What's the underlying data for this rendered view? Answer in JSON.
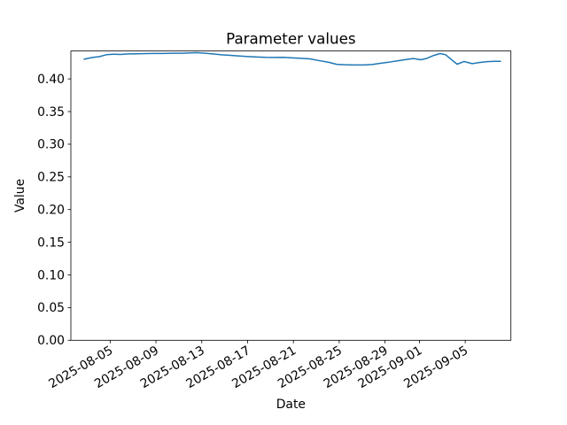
{
  "figure": {
    "title": "Parameter values",
    "xlabel": "Date",
    "ylabel": "Value",
    "background_color": "#ffffff",
    "spine_color": "#000000",
    "text_color": "#000000",
    "line_color": "#1f77b4"
  },
  "chart_data": {
    "type": "line",
    "title": "Parameter values",
    "xlabel": "Date",
    "ylabel": "Value",
    "grid": false,
    "legend": null,
    "ylim": [
      0,
      0.4427
    ],
    "x_epoch": "days since 2025-08-01",
    "xlim_days": [
      0.57,
      38.99
    ],
    "yticks": [
      0.0,
      0.05,
      0.1,
      0.15,
      0.2,
      0.25,
      0.3,
      0.35,
      0.4
    ],
    "ytick_labels": [
      "0.00",
      "0.05",
      "0.10",
      "0.15",
      "0.20",
      "0.25",
      "0.30",
      "0.35",
      "0.40"
    ],
    "xticks_days": [
      4,
      8,
      12,
      16,
      20,
      24,
      28,
      31,
      35
    ],
    "xtick_labels": [
      "2025-08-05",
      "2025-08-09",
      "2025-08-13",
      "2025-08-17",
      "2025-08-21",
      "2025-08-25",
      "2025-08-29",
      "2025-09-01",
      "2025-09-05"
    ],
    "xtick_rotation_deg": 30,
    "series": [
      {
        "name": "Parameter values",
        "color": "#1f77b4",
        "x_days": [
          1.73,
          2.12,
          2.51,
          3.05,
          3.67,
          4.29,
          4.9,
          5.6,
          6.37,
          7.15,
          7.92,
          8.69,
          9.47,
          10.24,
          11.01,
          11.56,
          12.17,
          12.95,
          13.72,
          14.49,
          15.27,
          16.04,
          16.81,
          17.59,
          18.36,
          19.13,
          19.91,
          20.68,
          21.45,
          22.23,
          23.0,
          23.77,
          24.55,
          25.32,
          26.09,
          26.87,
          27.64,
          28.41,
          29.19,
          29.96,
          30.5,
          31.12,
          31.66,
          32.28,
          32.82,
          33.29,
          33.83,
          34.29,
          34.91,
          35.61,
          36.23,
          36.92,
          37.54,
          38.08
        ],
        "values": [
          0.4301,
          0.4317,
          0.433,
          0.434,
          0.437,
          0.4378,
          0.4375,
          0.4383,
          0.4385,
          0.4387,
          0.4389,
          0.439,
          0.4392,
          0.4392,
          0.4397,
          0.4401,
          0.4394,
          0.4383,
          0.4369,
          0.436,
          0.435,
          0.4342,
          0.4336,
          0.433,
          0.4328,
          0.433,
          0.4322,
          0.4315,
          0.4306,
          0.428,
          0.4257,
          0.4223,
          0.4216,
          0.4214,
          0.4213,
          0.422,
          0.424,
          0.4258,
          0.428,
          0.43,
          0.4311,
          0.4293,
          0.4315,
          0.4361,
          0.4388,
          0.437,
          0.429,
          0.4225,
          0.4266,
          0.4234,
          0.425,
          0.4264,
          0.427,
          0.427
        ]
      }
    ]
  }
}
